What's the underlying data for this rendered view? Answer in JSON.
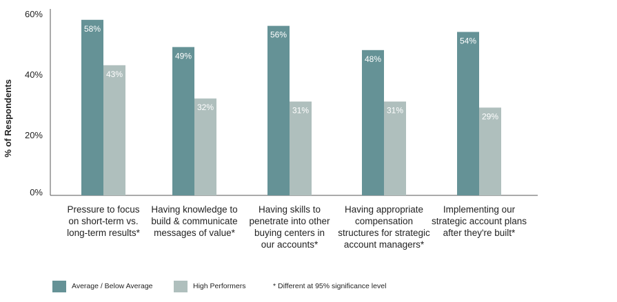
{
  "chart_data": {
    "type": "bar",
    "ylabel": "% of Respondents",
    "ylim": [
      0,
      60
    ],
    "yticks": [
      "0%",
      "20%",
      "40%",
      "60%"
    ],
    "categories": [
      "Pressure to focus\non short-term vs.\nlong-term results*",
      "Having knowledge to\nbuild & communicate\nmessages of value*",
      "Having skills to\npenetrate into other\nbuying centers in\nour accounts*",
      "Having appropriate\ncompensation\nstructures for strategic\naccount managers*",
      "Implementing our\nstrategic account plans\nafter they're built*"
    ],
    "series": [
      {
        "name": "Average / Below Average",
        "color": "#659296",
        "values": [
          58,
          49,
          56,
          48,
          54
        ],
        "labels": [
          "58%",
          "49%",
          "56%",
          "48%",
          "54%"
        ]
      },
      {
        "name": "High Performers",
        "color": "#afbfbd",
        "values": [
          43,
          32,
          31,
          31,
          29
        ],
        "labels": [
          "43%",
          "32%",
          "31%",
          "31%",
          "29%"
        ]
      }
    ],
    "legend_position": "bottom-left",
    "note": "* Different at 95% significance level"
  }
}
